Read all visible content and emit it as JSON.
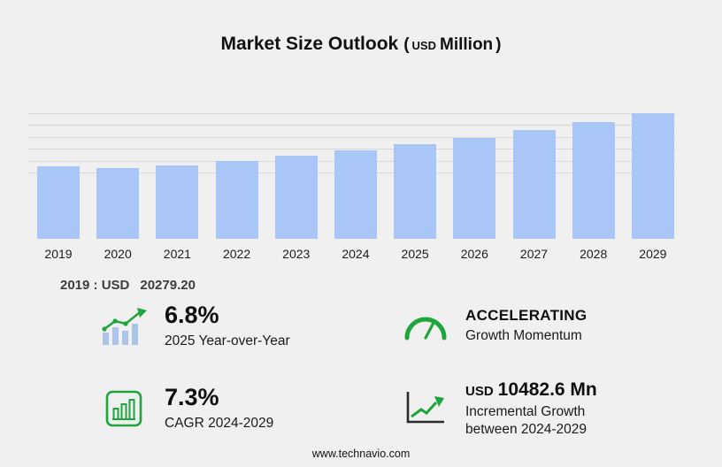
{
  "title": {
    "main": "Market Size Outlook",
    "unit_open": "(",
    "unit_currency": "USD",
    "unit_word": "Million",
    "unit_close": ")"
  },
  "chart_data": {
    "type": "bar",
    "title": "Market Size Outlook",
    "unit": "USD Million",
    "categories": [
      "2019",
      "2020",
      "2021",
      "2022",
      "2023",
      "2024",
      "2025",
      "2026",
      "2027",
      "2028",
      "2029"
    ],
    "values": [
      20279.2,
      19750,
      20600,
      21900,
      23300,
      24775.4,
      26460,
      28350,
      30450,
      32700,
      35258
    ],
    "xlabel": "",
    "ylabel": "",
    "ylim": [
      0,
      36000
    ],
    "grid": "horizontal",
    "legend": "none",
    "bar_color": "#a9c6f7"
  },
  "annotation": {
    "label": "2019 : USD",
    "value": "20279.20"
  },
  "stats": [
    {
      "icon": "bar-growth-icon",
      "value_prefix": "",
      "value": "6.8%",
      "label": "2025 Year-over-Year"
    },
    {
      "icon": "speedometer-icon",
      "value_prefix": "",
      "value": "ACCELERATING",
      "label": "Growth Momentum"
    },
    {
      "icon": "chart-window-icon",
      "value_prefix": "",
      "value": "7.3%",
      "label": "CAGR 2024-2029"
    },
    {
      "icon": "trend-up-icon",
      "value_prefix": "USD",
      "value": "10482.6 Mn",
      "label": "Incremental Growth between 2024-2029"
    }
  ],
  "footer": {
    "url": "www.technavio.com"
  },
  "colors": {
    "accent_green": "#1ea53c",
    "bar_blue": "#a9c6f7",
    "background": "#f0f0f0"
  }
}
